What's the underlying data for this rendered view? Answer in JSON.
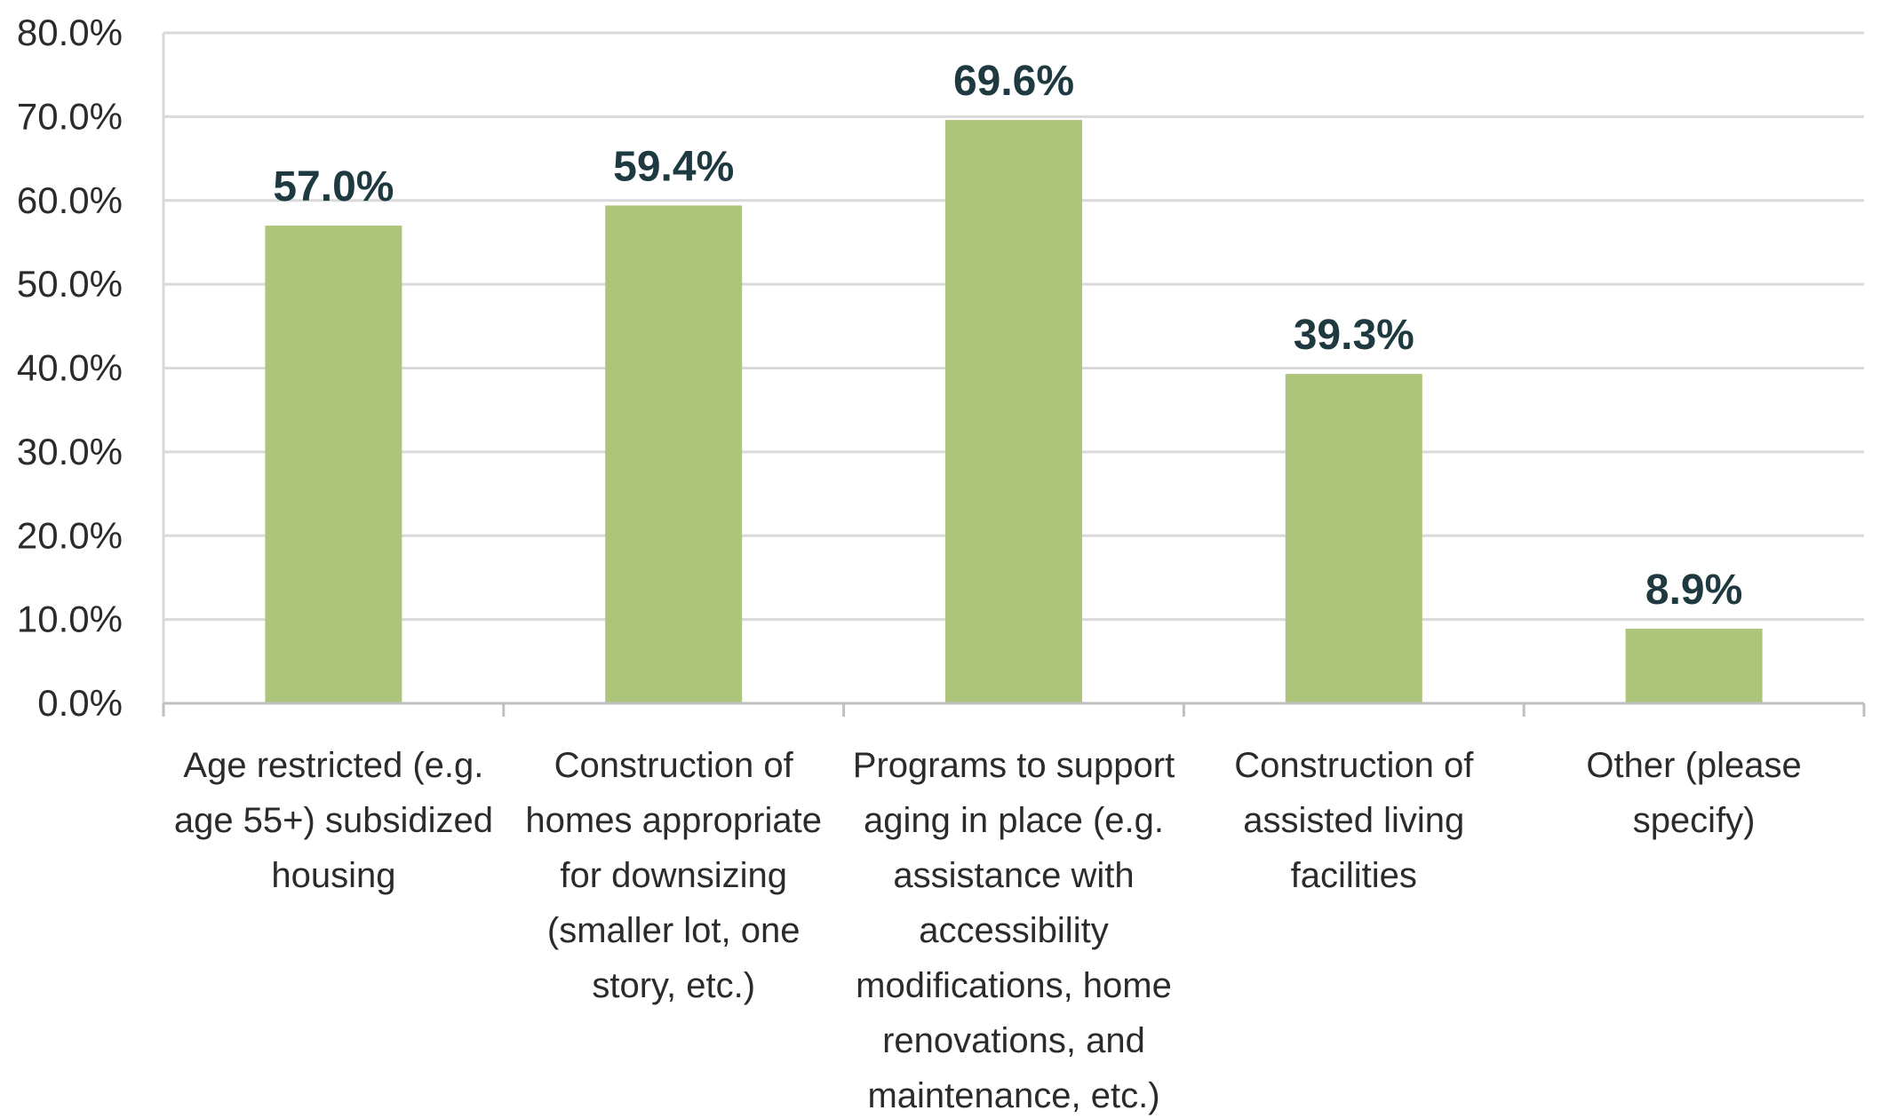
{
  "chart_data": {
    "type": "bar",
    "title": "",
    "xlabel": "",
    "ylabel": "",
    "categories": [
      [
        "Age restricted (e.g.",
        "age 55+) subsidized",
        "housing"
      ],
      [
        "Construction of",
        "homes appropriate",
        "for downsizing",
        "(smaller lot, one",
        "story, etc.)"
      ],
      [
        "Programs to support",
        "aging in place (e.g.",
        "assistance with",
        "accessibility",
        "modifications, home",
        "renovations, and",
        "maintenance, etc.)"
      ],
      [
        "Construction of",
        "assisted living",
        "facilities"
      ],
      [
        "Other (please",
        "specify)"
      ]
    ],
    "values": [
      57.0,
      59.4,
      69.6,
      39.3,
      8.9
    ],
    "data_labels": [
      "57.0%",
      "59.4%",
      "69.6%",
      "39.3%",
      "8.9%"
    ],
    "ylim": [
      0,
      80
    ],
    "yticks": [
      0,
      10,
      20,
      30,
      40,
      50,
      60,
      70,
      80
    ],
    "ytick_labels": [
      "0.0%",
      "10.0%",
      "20.0%",
      "30.0%",
      "40.0%",
      "50.0%",
      "60.0%",
      "70.0%",
      "80.0%"
    ],
    "grid": true,
    "legend": "none",
    "colors": {
      "bar": "#adc57b",
      "grid": "#d9d9d9",
      "axis": "#bfbfbf",
      "data_label": "#1e3a40"
    }
  }
}
